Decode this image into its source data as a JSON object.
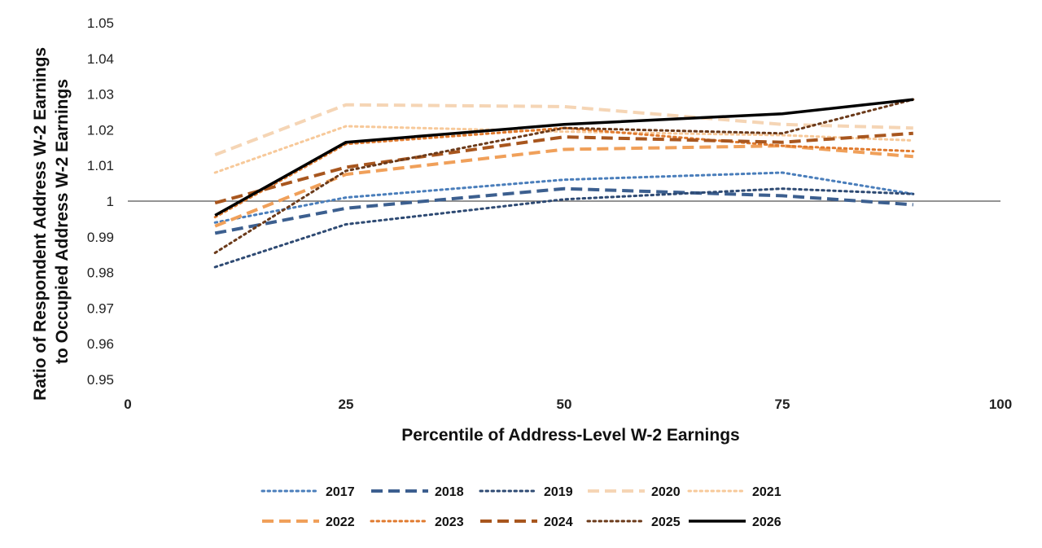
{
  "chart_data": {
    "type": "line",
    "xlabel": "Percentile of Address-Level W-2 Earnings",
    "ylabel_lines": [
      "Ratio of Respondent Address W-2 Earnings",
      "to Occupied Address W-2 Earnings"
    ],
    "xlim": [
      0,
      100
    ],
    "ylim": [
      0.95,
      1.05
    ],
    "x_ticks": [
      0,
      25,
      50,
      75,
      100
    ],
    "x_tick_labels": [
      "0",
      "25",
      "50",
      "75",
      "100"
    ],
    "y_ticks": [
      0.95,
      0.96,
      0.97,
      0.98,
      0.99,
      1.0,
      1.01,
      1.02,
      1.03,
      1.04,
      1.05
    ],
    "y_tick_labels": [
      "0.95",
      "0.96",
      "0.97",
      "0.98",
      "0.99",
      "1",
      "1.01",
      "1.02",
      "1.03",
      "1.04",
      "1.05"
    ],
    "reference_line_y": 1.0,
    "grid": false,
    "legend_position": "bottom",
    "x": [
      10,
      25,
      50,
      75,
      90
    ],
    "series": [
      {
        "name": "2017",
        "values": [
          0.994,
          1.001,
          1.006,
          1.008,
          1.002
        ],
        "color": "#4a7ebb",
        "dash": "dotted",
        "width": 3
      },
      {
        "name": "2018",
        "values": [
          0.991,
          0.998,
          1.0035,
          1.0015,
          0.999
        ],
        "color": "#3c5f8f",
        "dash": "dashed",
        "width": 4
      },
      {
        "name": "2019",
        "values": [
          0.9815,
          0.9935,
          1.0005,
          1.0035,
          1.002
        ],
        "color": "#2e4a73",
        "dash": "dotted",
        "width": 3
      },
      {
        "name": "2020",
        "values": [
          1.013,
          1.027,
          1.0265,
          1.0215,
          1.0205
        ],
        "color": "#f5d5b5",
        "dash": "dashed",
        "width": 4
      },
      {
        "name": "2021",
        "values": [
          1.008,
          1.021,
          1.0195,
          1.0185,
          1.017
        ],
        "color": "#f7c99a",
        "dash": "dotted",
        "width": 3
      },
      {
        "name": "2022",
        "values": [
          0.993,
          1.0075,
          1.0145,
          1.0155,
          1.0125
        ],
        "color": "#f0a05a",
        "dash": "dashed",
        "width": 4
      },
      {
        "name": "2023",
        "values": [
          0.9955,
          1.016,
          1.0205,
          1.0155,
          1.014
        ],
        "color": "#e07a2e",
        "dash": "dotted",
        "width": 3
      },
      {
        "name": "2024",
        "values": [
          0.9995,
          1.0095,
          1.018,
          1.0165,
          1.019
        ],
        "color": "#a8561e",
        "dash": "dashed",
        "width": 4
      },
      {
        "name": "2025",
        "values": [
          0.9855,
          1.0085,
          1.0205,
          1.019,
          1.0285
        ],
        "color": "#6b3a1a",
        "dash": "dotted",
        "width": 3
      },
      {
        "name": "2026",
        "values": [
          0.996,
          1.0165,
          1.0215,
          1.0245,
          1.0285
        ],
        "color": "#000000",
        "dash": "solid",
        "width": 3.5
      }
    ]
  }
}
